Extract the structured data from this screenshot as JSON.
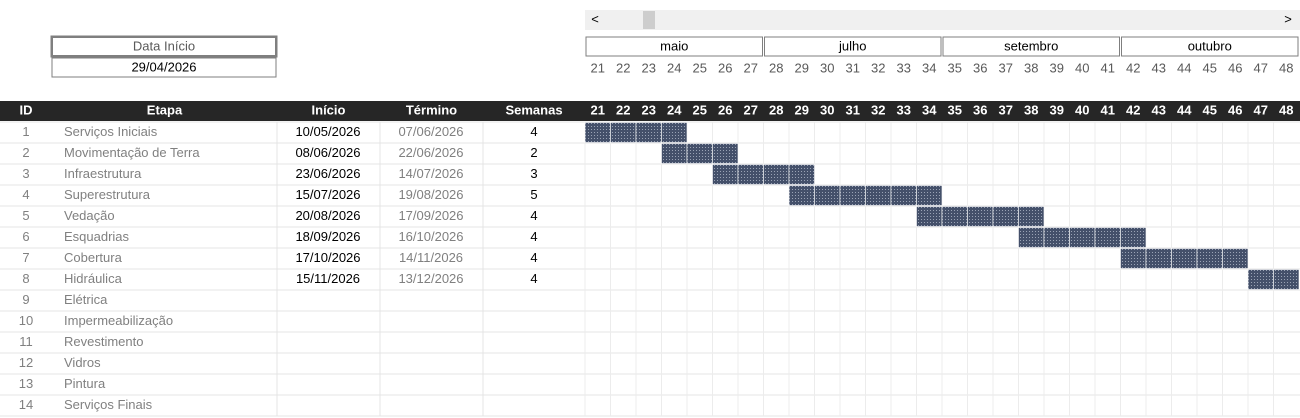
{
  "date_box": {
    "label": "Data Início",
    "value": "29/04/2026"
  },
  "scrollbar": {
    "left": "<",
    "right": ">"
  },
  "months": [
    "maio",
    "julho",
    "setembro",
    "outubro"
  ],
  "weeks": [
    21,
    22,
    23,
    24,
    25,
    26,
    27,
    28,
    29,
    30,
    31,
    32,
    33,
    34,
    35,
    36,
    37,
    38,
    39,
    40,
    41,
    42,
    43,
    44,
    45,
    46,
    47,
    48
  ],
  "table": {
    "columns": [
      "ID",
      "Etapa",
      "Início",
      "Término",
      "Semanas"
    ],
    "rows": [
      [
        1,
        "Serviços Iniciais",
        "10/05/2026",
        "07/06/2026",
        4
      ],
      [
        2,
        "Movimentação de Terra",
        "08/06/2026",
        "22/06/2026",
        2
      ],
      [
        3,
        "Infraestrutura",
        "23/06/2026",
        "14/07/2026",
        3
      ],
      [
        4,
        "Superestrutura",
        "15/07/2026",
        "19/08/2026",
        5
      ],
      [
        5,
        "Vedação",
        "20/08/2026",
        "17/09/2026",
        4
      ],
      [
        6,
        "Esquadrias",
        "18/09/2026",
        "16/10/2026",
        4
      ],
      [
        7,
        "Cobertura",
        "17/10/2026",
        "14/11/2026",
        4
      ],
      [
        8,
        "Hidráulica",
        "15/11/2026",
        "13/12/2026",
        4
      ],
      [
        9,
        "Elétrica",
        null,
        null,
        null
      ],
      [
        10,
        "Impermeabilização",
        null,
        null,
        null
      ],
      [
        11,
        "Revestimento",
        null,
        null,
        null
      ],
      [
        12,
        "Vidros",
        null,
        null,
        null
      ],
      [
        13,
        "Pintura",
        null,
        null,
        null
      ],
      [
        14,
        "Serviços Finais",
        null,
        null,
        null
      ]
    ]
  }
}
